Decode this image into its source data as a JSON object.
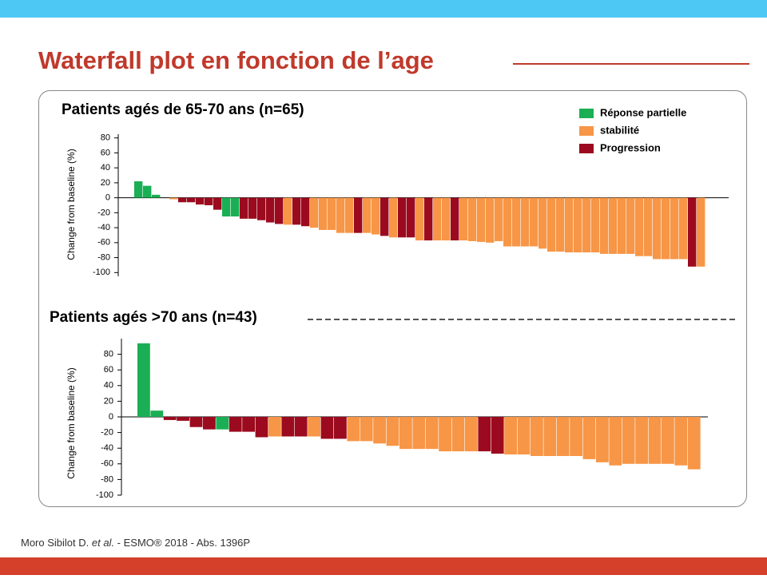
{
  "title": "Waterfall plot en fonction de l’age",
  "footnote": [
    "Moro Sibilot D. ",
    "et al.",
    " - ESMO® 2018 - Abs. 1396P"
  ],
  "chart_data": [
    {
      "type": "bar",
      "title": "Patients agés de 65-70 ans (n=65)",
      "y_label": "Change from baseline (%)",
      "ylim": [
        -105,
        85
      ],
      "yticks": [
        80,
        60,
        40,
        20,
        0,
        -20,
        -40,
        -60,
        -80,
        -100
      ],
      "legend": "top-right",
      "series": [
        {
          "name": "Réponse partielle",
          "color": "#1aaf54",
          "values": [
            22,
            16,
            4,
            null,
            null,
            null,
            null,
            null,
            null,
            null,
            -25,
            -25,
            null,
            null,
            null,
            null,
            null,
            null,
            null,
            null,
            null,
            null,
            null,
            null,
            null,
            null,
            null,
            null,
            null,
            null,
            null,
            null,
            null,
            null,
            null,
            null,
            null,
            null,
            null,
            null,
            null,
            null,
            null,
            null,
            null,
            null,
            null,
            null,
            null,
            null,
            null,
            null,
            null,
            null,
            null,
            null,
            null,
            null,
            null,
            null,
            null,
            null,
            null,
            null,
            null
          ]
        },
        {
          "name": "stabilité",
          "color": "#f79646",
          "values": [
            null,
            null,
            null,
            0,
            -2,
            null,
            null,
            null,
            null,
            null,
            null,
            null,
            null,
            null,
            null,
            null,
            null,
            -36,
            null,
            null,
            -40,
            -43,
            -43,
            -47,
            -47,
            null,
            -47,
            -49,
            null,
            -53,
            null,
            null,
            -57,
            null,
            -57,
            -57,
            null,
            -57,
            -58,
            -59,
            -60,
            -58,
            -65,
            -65,
            -65,
            -65,
            -68,
            -72,
            -72,
            -73,
            -73,
            -73,
            -73,
            -75,
            -75,
            -75,
            -75,
            -78,
            -78,
            -82,
            -82,
            -82,
            -82,
            null,
            -92
          ]
        },
        {
          "name": "Progression",
          "color": "#9b0a1e",
          "values": [
            null,
            null,
            null,
            null,
            null,
            -6,
            -6,
            -9,
            -10,
            -16,
            null,
            null,
            -28,
            -28,
            -30,
            -33,
            -35,
            null,
            -36,
            -38,
            null,
            null,
            null,
            null,
            null,
            -47,
            null,
            null,
            -51,
            null,
            -53,
            -53,
            null,
            -57,
            null,
            null,
            -57,
            null,
            null,
            null,
            null,
            null,
            null,
            null,
            null,
            null,
            null,
            null,
            null,
            null,
            null,
            null,
            null,
            null,
            null,
            null,
            null,
            null,
            null,
            null,
            null,
            null,
            null,
            -92,
            null
          ]
        }
      ]
    },
    {
      "type": "bar",
      "title": "Patients agés >70 ans (n=43)",
      "y_label": "Change from baseline (%)",
      "ylim": [
        -100,
        100
      ],
      "yticks": [
        80,
        60,
        40,
        20,
        0,
        -20,
        -40,
        -60,
        -80,
        -100
      ],
      "series": [
        {
          "color": "#1aaf54",
          "values": [
            94,
            8,
            null,
            null,
            null,
            null,
            -16,
            null,
            null,
            null,
            null,
            null,
            null,
            null,
            null,
            null,
            null,
            null,
            null,
            null,
            null,
            null,
            null,
            null,
            null,
            null,
            null,
            null,
            null,
            null,
            null,
            null,
            null,
            null,
            null,
            null,
            null,
            null,
            null,
            null,
            null,
            null,
            null
          ]
        },
        {
          "color": "#f79646",
          "values": [
            null,
            null,
            null,
            null,
            null,
            null,
            null,
            null,
            null,
            null,
            -25,
            null,
            null,
            -25,
            null,
            null,
            -31,
            -31,
            -34,
            -37,
            -41,
            -41,
            -41,
            -44,
            -44,
            -44,
            null,
            null,
            -48,
            -48,
            -50,
            -50,
            -50,
            -50,
            -54,
            -58,
            -62,
            -60,
            -60,
            -60,
            -60,
            -62,
            -67
          ]
        },
        {
          "color": "#9b0a1e",
          "values": [
            null,
            null,
            -4,
            -5,
            -13,
            -16,
            null,
            -19,
            -19,
            -26,
            null,
            -25,
            -25,
            null,
            -28,
            -28,
            null,
            null,
            null,
            null,
            null,
            null,
            null,
            null,
            null,
            null,
            -44,
            -47,
            null,
            null,
            null,
            null,
            null,
            null,
            null,
            null,
            null,
            null,
            null,
            null,
            null,
            null,
            null
          ]
        }
      ]
    }
  ]
}
